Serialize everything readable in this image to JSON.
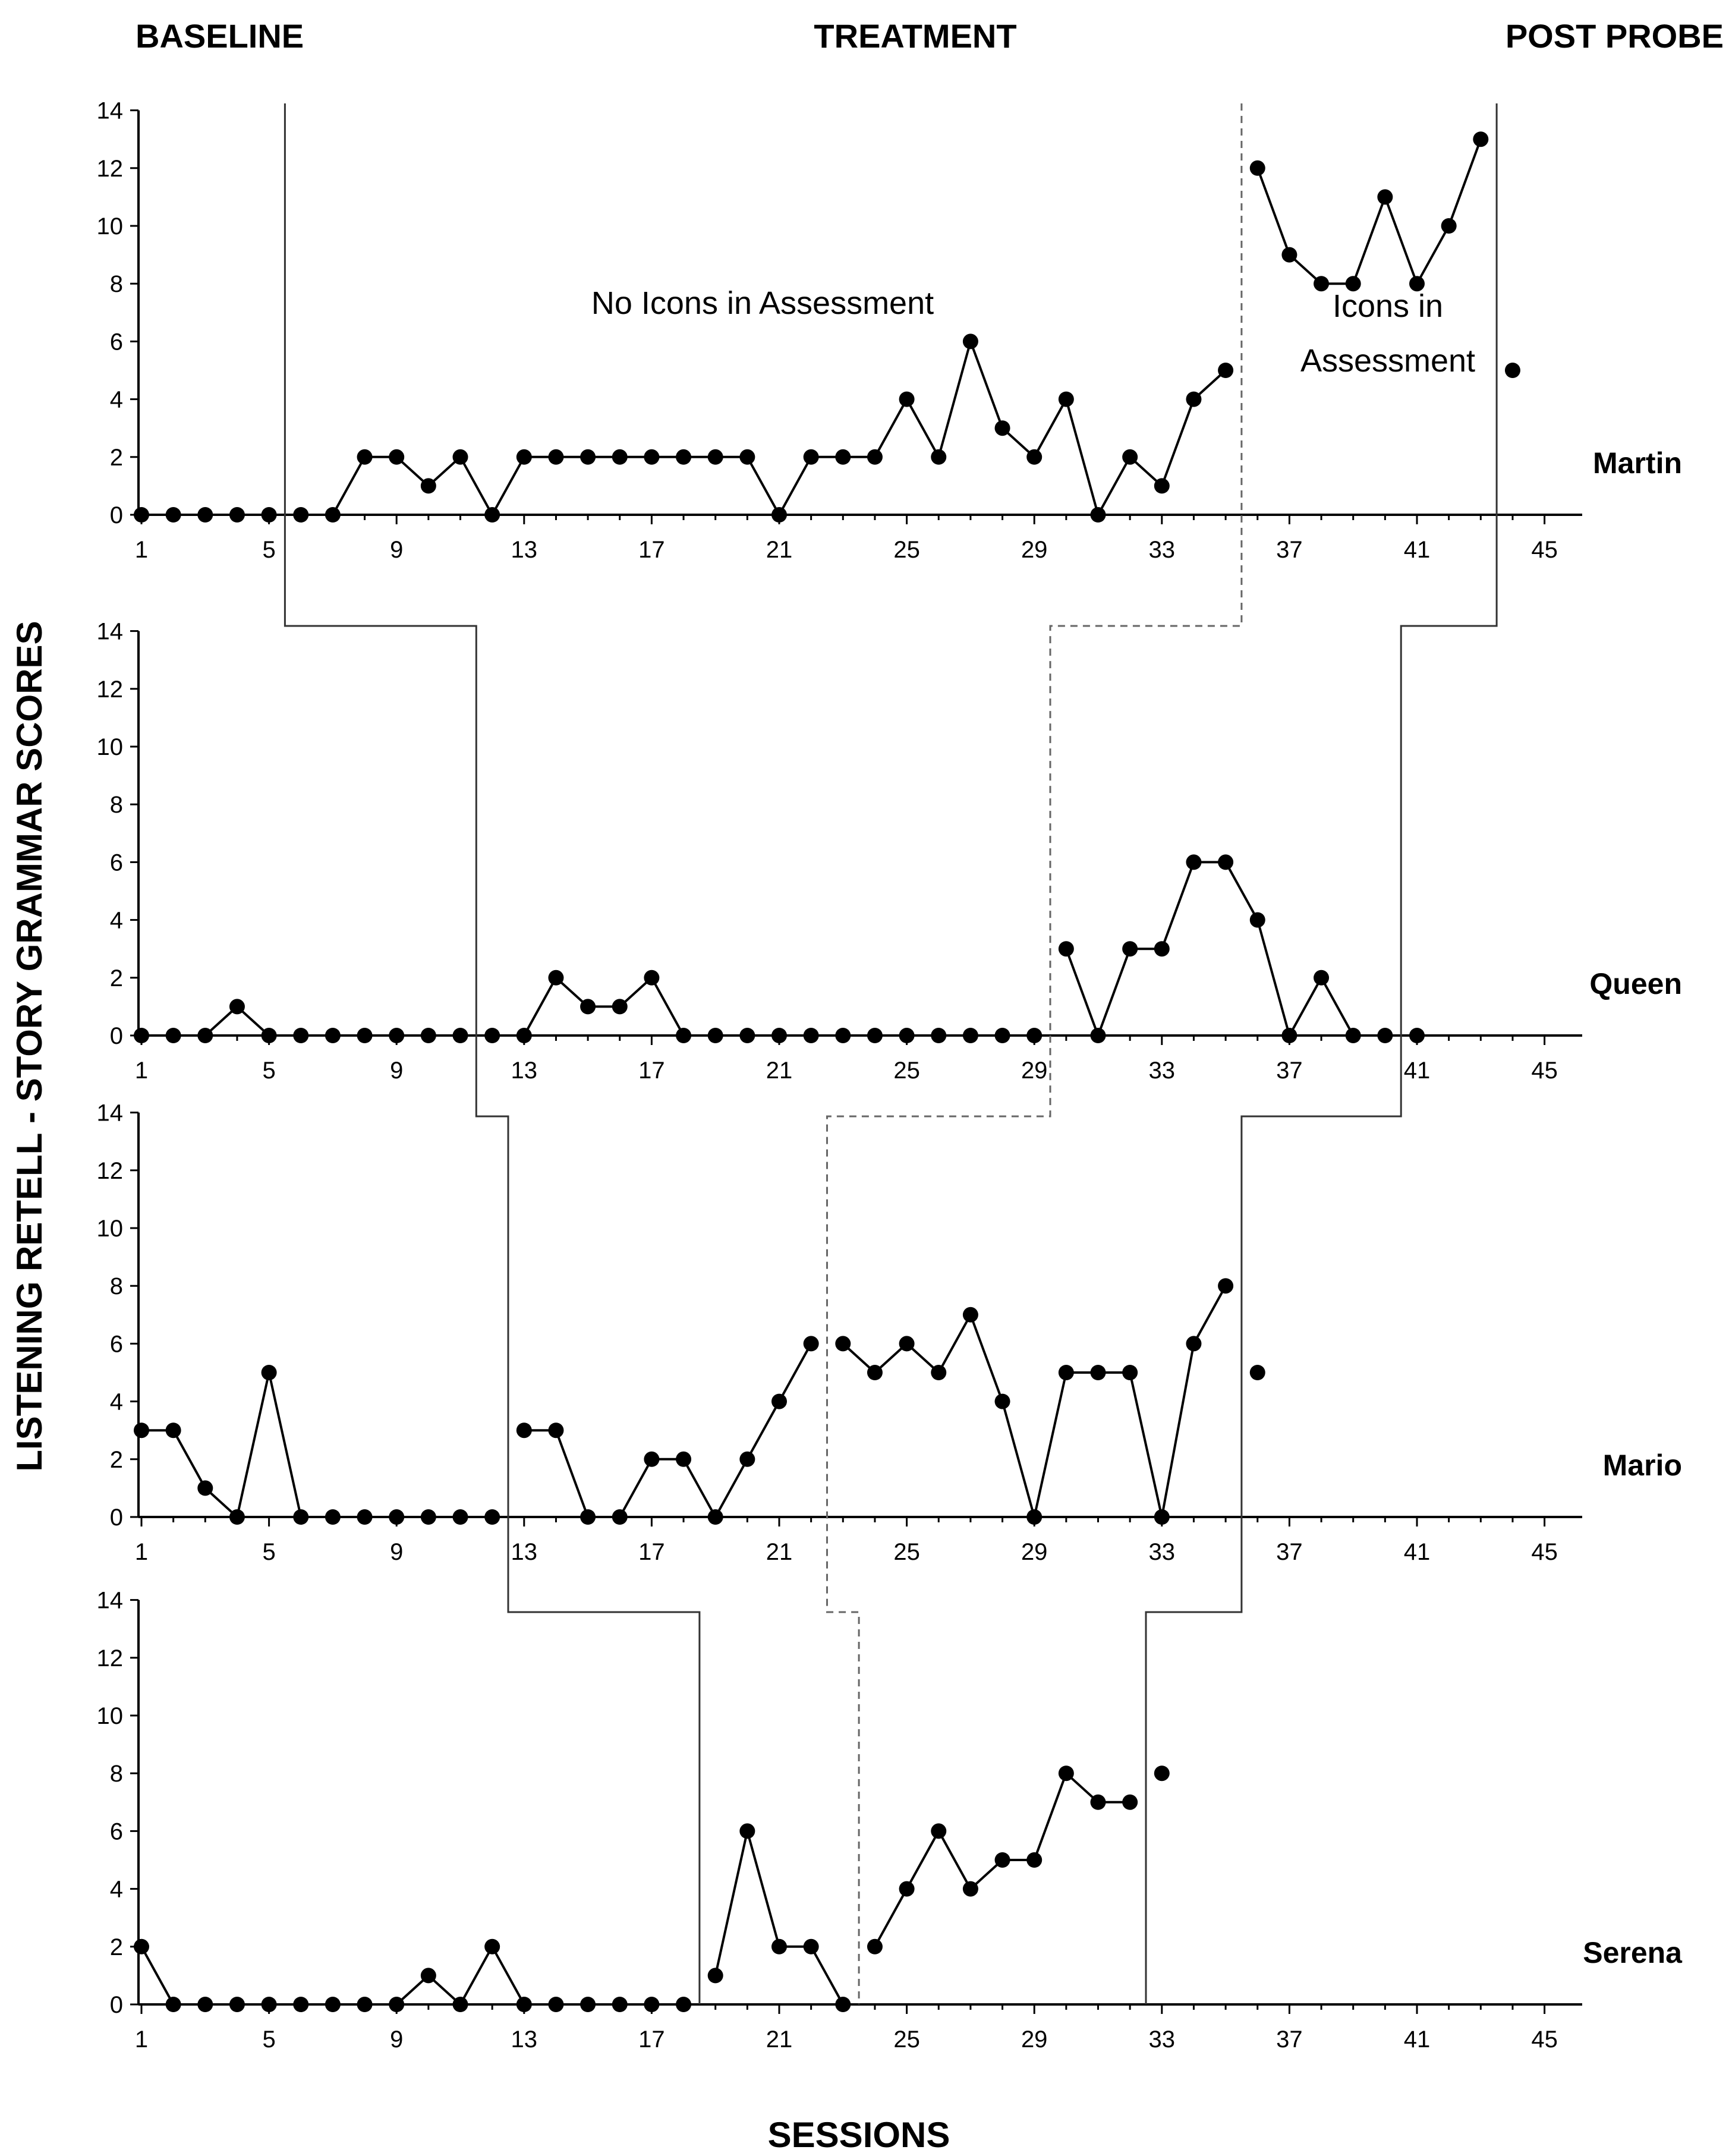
{
  "chart_data": {
    "type": "line",
    "phase_labels": [
      "BASELINE",
      "TREATMENT",
      "POST PROBE"
    ],
    "ylabel": "LISTENING RETELL - STORY GRAMMAR SCORES",
    "xlabel": "SESSIONS",
    "ylim": [
      0,
      14
    ],
    "y_ticks": [
      0,
      2,
      4,
      6,
      8,
      10,
      12,
      14
    ],
    "xlim": [
      1,
      45
    ],
    "x_ticks": [
      1,
      5,
      9,
      13,
      17,
      21,
      25,
      29,
      33,
      37,
      41,
      45
    ],
    "annotations": [
      "No Icons in Assessment",
      "Icons in",
      "Assessment"
    ],
    "panels": [
      {
        "participant": "Martin",
        "series": [
          {
            "x": [
              1,
              2,
              3,
              4,
              5
            ],
            "y": [
              0,
              0,
              0,
              0,
              0
            ]
          },
          {
            "x": [
              6,
              7,
              8,
              9,
              10,
              11,
              12,
              13,
              14,
              15,
              16,
              17,
              18,
              19,
              20,
              21,
              22,
              23,
              24,
              25,
              26,
              27,
              28,
              29,
              30,
              31,
              32,
              33,
              34,
              35
            ],
            "y": [
              0,
              0,
              2,
              2,
              1,
              2,
              0,
              2,
              2,
              2,
              2,
              2,
              2,
              2,
              2,
              0,
              2,
              2,
              2,
              4,
              2,
              6,
              3,
              2,
              4,
              0,
              2,
              1,
              4,
              5
            ]
          },
          {
            "x": [
              36,
              37,
              38,
              39,
              40,
              41,
              42,
              43
            ],
            "y": [
              12,
              9,
              8,
              8,
              11,
              8,
              10,
              13
            ]
          },
          {
            "x": [
              44
            ],
            "y": [
              5
            ]
          }
        ]
      },
      {
        "participant": "Queen",
        "series": [
          {
            "x": [
              1,
              2,
              3,
              4,
              5,
              6,
              7,
              8,
              9,
              10,
              11
            ],
            "y": [
              0,
              0,
              0,
              1,
              0,
              0,
              0,
              0,
              0,
              0,
              0
            ]
          },
          {
            "x": [
              12,
              13,
              14,
              15,
              16,
              17,
              18,
              19,
              20,
              21,
              22,
              23,
              24,
              25,
              26,
              27,
              28,
              29
            ],
            "y": [
              0,
              0,
              2,
              1,
              1,
              2,
              0,
              0,
              0,
              0,
              0,
              0,
              0,
              0,
              0,
              0,
              0,
              0
            ]
          },
          {
            "x": [
              30,
              31,
              32,
              33,
              34,
              35,
              36,
              37,
              38,
              39,
              40
            ],
            "y": [
              3,
              0,
              3,
              3,
              6,
              6,
              4,
              0,
              2,
              0,
              0
            ]
          },
          {
            "x": [
              41
            ],
            "y": [
              0
            ]
          }
        ]
      },
      {
        "participant": "Mario",
        "series": [
          {
            "x": [
              1,
              2,
              3,
              4,
              5,
              6,
              7,
              8,
              9,
              10,
              11,
              12
            ],
            "y": [
              3,
              3,
              1,
              0,
              5,
              0,
              0,
              0,
              0,
              0,
              0,
              0
            ]
          },
          {
            "x": [
              13,
              14,
              15,
              16,
              17,
              18,
              19,
              20,
              21,
              22
            ],
            "y": [
              3,
              3,
              0,
              0,
              2,
              2,
              0,
              2,
              4,
              6
            ]
          },
          {
            "x": [
              23,
              24,
              25,
              26,
              27,
              28,
              29,
              30,
              31,
              32,
              33,
              34,
              35
            ],
            "y": [
              6,
              5,
              6,
              5,
              7,
              4,
              0,
              5,
              5,
              5,
              0,
              6,
              8
            ]
          },
          {
            "x": [
              36
            ],
            "y": [
              5
            ]
          }
        ]
      },
      {
        "participant": "Serena",
        "series": [
          {
            "x": [
              1,
              2,
              3,
              4,
              5,
              6,
              7,
              8,
              9,
              10,
              11,
              12,
              13,
              14,
              15,
              16,
              17,
              18
            ],
            "y": [
              2,
              0,
              0,
              0,
              0,
              0,
              0,
              0,
              0,
              1,
              0,
              2,
              0,
              0,
              0,
              0,
              0,
              0
            ]
          },
          {
            "x": [
              19,
              20,
              21,
              22,
              23
            ],
            "y": [
              1,
              6,
              2,
              2,
              0
            ]
          },
          {
            "x": [
              24,
              25,
              26,
              27,
              28,
              29,
              30,
              31,
              32
            ],
            "y": [
              2,
              4,
              6,
              4,
              5,
              5,
              8,
              7,
              7
            ]
          },
          {
            "x": [
              33
            ],
            "y": [
              8
            ]
          }
        ]
      }
    ],
    "grid": false,
    "legend": "none"
  }
}
